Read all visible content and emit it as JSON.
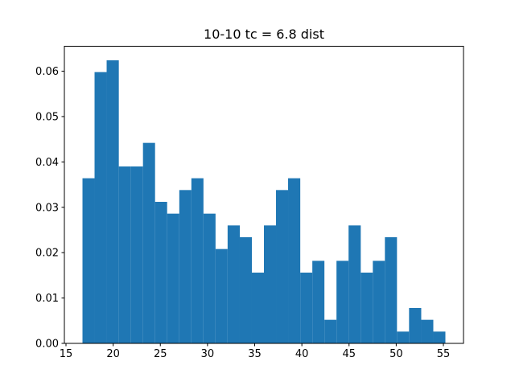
{
  "chart_data": {
    "type": "bar",
    "subtype": "histogram",
    "title": "10-10 tc = 6.8 dist",
    "xlabel": "",
    "ylabel": "",
    "grid": false,
    "legend": "none",
    "bar_color": "#1f77b4",
    "axis_color": "#000000",
    "text_color": "#000000",
    "background_color": "#ffffff",
    "xlim": [
      14.83,
      57.13
    ],
    "ylim": [
      0,
      0.0655
    ],
    "xtick_values": [
      15,
      20,
      25,
      30,
      35,
      40,
      45,
      50,
      55
    ],
    "xtick_labels": [
      "15",
      "20",
      "25",
      "30",
      "35",
      "40",
      "45",
      "50",
      "55"
    ],
    "ytick_values": [
      0,
      0.01,
      0.02,
      0.03,
      0.04,
      0.05,
      0.06
    ],
    "ytick_labels": [
      "0.00",
      "0.01",
      "0.02",
      "0.03",
      "0.04",
      "0.05",
      "0.06"
    ],
    "bin_edges": [
      16.75,
      18.03,
      19.31,
      20.6,
      21.88,
      23.16,
      24.44,
      25.72,
      27.01,
      28.29,
      29.57,
      30.85,
      32.13,
      33.42,
      34.7,
      35.98,
      37.26,
      38.54,
      39.83,
      41.11,
      42.39,
      43.67,
      44.95,
      46.24,
      47.52,
      48.8,
      50.08,
      51.36,
      52.65,
      53.93,
      55.21
    ],
    "values": [
      0.0364,
      0.0598,
      0.0624,
      0.039,
      0.039,
      0.0442,
      0.0312,
      0.0286,
      0.0338,
      0.0364,
      0.0286,
      0.0208,
      0.026,
      0.0234,
      0.0156,
      0.026,
      0.0338,
      0.0364,
      0.0156,
      0.0182,
      0.0052,
      0.0182,
      0.026,
      0.0156,
      0.0182,
      0.0234,
      0.0026,
      0.0078,
      0.0052,
      0.0026
    ]
  }
}
